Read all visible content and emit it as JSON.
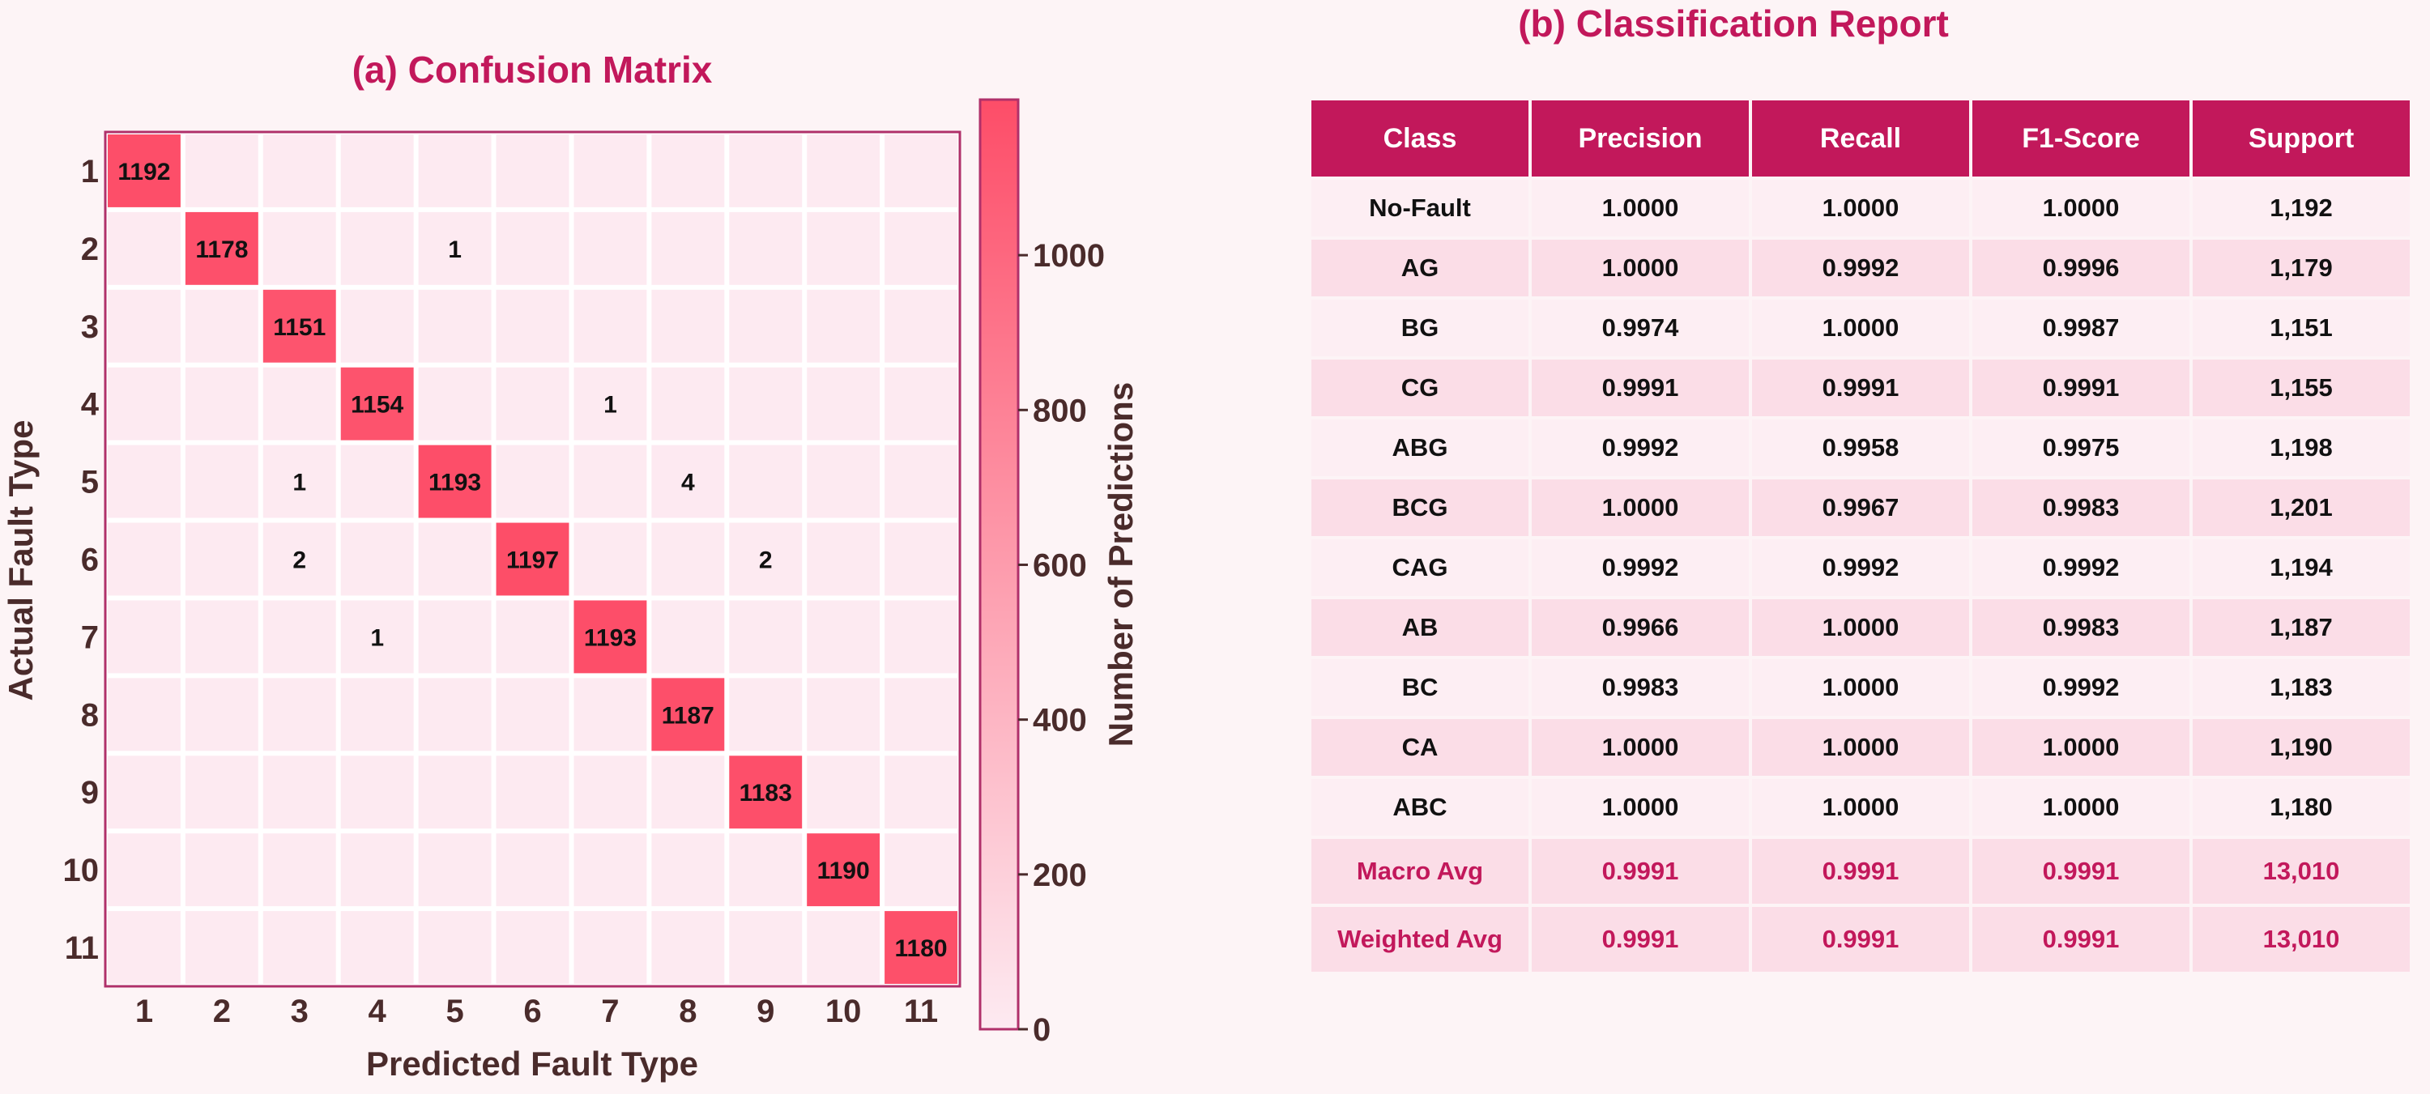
{
  "confusion_matrix_panel": {
    "title": "(a) Confusion Matrix",
    "xlabel": "Predicted Fault Type",
    "ylabel": "Actual Fault Type",
    "colorbar_label": "Number of Predictions",
    "colorbar_ticks": [
      "0",
      "200",
      "400",
      "600",
      "800",
      "1000"
    ]
  },
  "report_panel": {
    "title": "(b) Classification Report",
    "headers": [
      "Class",
      "Precision",
      "Recall",
      "F1-Score",
      "Support"
    ],
    "rows": [
      [
        "No-Fault",
        "1.0000",
        "1.0000",
        "1.0000",
        "1,192"
      ],
      [
        "AG",
        "1.0000",
        "0.9992",
        "0.9996",
        "1,179"
      ],
      [
        "BG",
        "0.9974",
        "1.0000",
        "0.9987",
        "1,151"
      ],
      [
        "CG",
        "0.9991",
        "0.9991",
        "0.9991",
        "1,155"
      ],
      [
        "ABG",
        "0.9992",
        "0.9958",
        "0.9975",
        "1,198"
      ],
      [
        "BCG",
        "1.0000",
        "0.9967",
        "0.9983",
        "1,201"
      ],
      [
        "CAG",
        "0.9992",
        "0.9992",
        "0.9992",
        "1,194"
      ],
      [
        "AB",
        "0.9966",
        "1.0000",
        "0.9983",
        "1,187"
      ],
      [
        "BC",
        "0.9983",
        "1.0000",
        "0.9992",
        "1,183"
      ],
      [
        "CA",
        "1.0000",
        "1.0000",
        "1.0000",
        "1,190"
      ],
      [
        "ABC",
        "1.0000",
        "1.0000",
        "1.0000",
        "1,180"
      ]
    ],
    "avg_rows": [
      [
        "Macro Avg",
        "0.9991",
        "0.9991",
        "0.9991",
        "13,010"
      ],
      [
        "Weighted Avg",
        "0.9991",
        "0.9991",
        "0.9991",
        "13,010"
      ]
    ]
  },
  "colors": {
    "accent": "#c2185b",
    "cell_low": "#fdeaf1",
    "cell_high": "#fd4d68",
    "text_dark": "#4a2b2b"
  },
  "chart_data": [
    {
      "type": "heatmap",
      "title": "(a) Confusion Matrix",
      "xlabel": "Predicted Fault Type",
      "ylabel": "Actual Fault Type",
      "x_categories": [
        "1",
        "2",
        "3",
        "4",
        "5",
        "6",
        "7",
        "8",
        "9",
        "10",
        "11"
      ],
      "y_categories": [
        "1",
        "2",
        "3",
        "4",
        "5",
        "6",
        "7",
        "8",
        "9",
        "10",
        "11"
      ],
      "colorbar_label": "Number of Predictions",
      "colorbar_range": [
        0,
        1201
      ],
      "matrix": [
        [
          1192,
          0,
          0,
          0,
          0,
          0,
          0,
          0,
          0,
          0,
          0
        ],
        [
          0,
          1178,
          0,
          0,
          1,
          0,
          0,
          0,
          0,
          0,
          0
        ],
        [
          0,
          0,
          1151,
          0,
          0,
          0,
          0,
          0,
          0,
          0,
          0
        ],
        [
          0,
          0,
          0,
          1154,
          0,
          0,
          1,
          0,
          0,
          0,
          0
        ],
        [
          0,
          0,
          1,
          0,
          1193,
          0,
          0,
          4,
          0,
          0,
          0
        ],
        [
          0,
          0,
          2,
          0,
          0,
          1197,
          0,
          0,
          2,
          0,
          0
        ],
        [
          0,
          0,
          0,
          1,
          0,
          0,
          1193,
          0,
          0,
          0,
          0
        ],
        [
          0,
          0,
          0,
          0,
          0,
          0,
          0,
          1187,
          0,
          0,
          0
        ],
        [
          0,
          0,
          0,
          0,
          0,
          0,
          0,
          0,
          1183,
          0,
          0
        ],
        [
          0,
          0,
          0,
          0,
          0,
          0,
          0,
          0,
          0,
          1190,
          0
        ],
        [
          0,
          0,
          0,
          0,
          0,
          0,
          0,
          0,
          0,
          0,
          1180
        ]
      ]
    },
    {
      "type": "table",
      "title": "(b) Classification Report",
      "columns": [
        "Class",
        "Precision",
        "Recall",
        "F1-Score",
        "Support"
      ]
    }
  ]
}
